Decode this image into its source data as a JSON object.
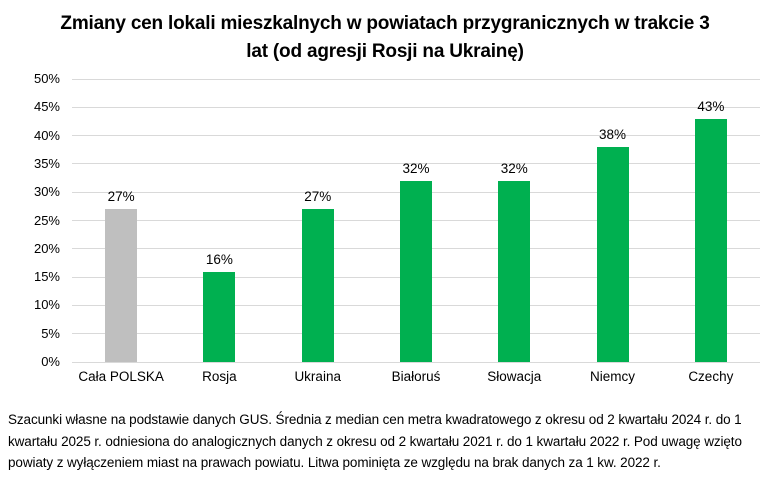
{
  "header": {
    "title": "Zmiany cen lokali mieszkalnych w powiatach przygranicznych w trakcie 3 lat (od agresji Rosji na Ukrainę)",
    "title_lines": [
      "Zmiany cen lokali mieszkalnych w powiatach przygranicznych w trakcie 3",
      "lat (od agresji Rosji na Ukrainę)"
    ]
  },
  "chart_data": {
    "type": "bar",
    "title": "Zmiany cen lokali mieszkalnych w powiatach przygranicznych w trakcie 3 lat (od agresji Rosji na Ukrainę)",
    "categories": [
      "Cała POLSKA",
      "Rosja",
      "Ukraina",
      "Białoruś",
      "Słowacja",
      "Niemcy",
      "Czechy"
    ],
    "values": [
      27,
      16,
      27,
      32,
      32,
      38,
      43
    ],
    "value_labels": [
      "27%",
      "16%",
      "27%",
      "32%",
      "32%",
      "38%",
      "43%"
    ],
    "bar_colors": [
      "#BFBFBF",
      "#00B050",
      "#00B050",
      "#00B050",
      "#00B050",
      "#00B050",
      "#00B050"
    ],
    "xlabel": "",
    "ylabel": "",
    "ylim": [
      0,
      50
    ],
    "ytick_step": 5,
    "ytick_labels": [
      "0%",
      "5%",
      "10%",
      "15%",
      "20%",
      "25%",
      "30%",
      "35%",
      "40%",
      "45%",
      "50%"
    ],
    "grid": true,
    "legend_position": "none"
  },
  "colors": {
    "bar_green": "#00B050",
    "bar_gray": "#BFBFBF",
    "gridline": "#D9D9D9",
    "text": "#000000"
  },
  "footnote": {
    "text": "Szacunki własne na podstawie danych GUS. Średnia z median cen metra kwadratowego z okresu od 2 kwartału 2024 r. do 1 kwartału 2025 r. odniesiona do analogicznych danych z okresu od 2 kwartału 2021 r. do 1 kwartału 2022 r. Pod uwagę wzięto powiaty z wyłączeniem miast na prawach powiatu. Litwa pominięta ze względu na brak danych za 1 kw. 2022 r."
  }
}
